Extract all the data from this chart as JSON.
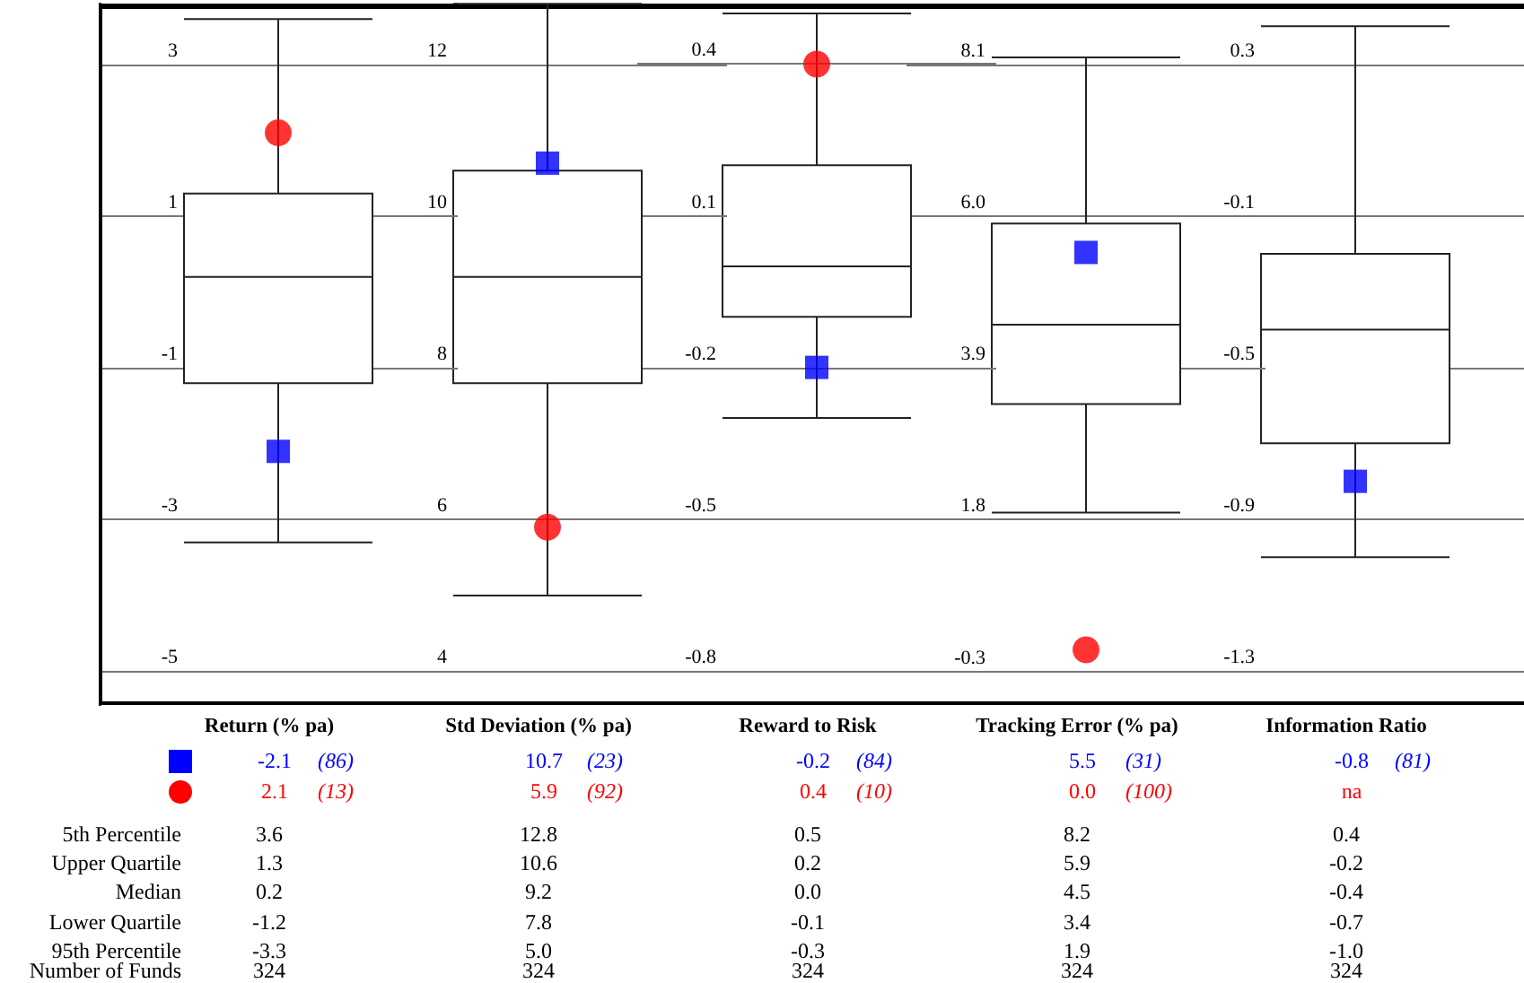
{
  "chart_data": [
    {
      "type": "box",
      "title": "Return (% pa)",
      "categories": [
        null
      ],
      "ylim": [
        -5.42,
        3.78
      ],
      "yticks": [
        3,
        1,
        -1,
        -3,
        -5
      ],
      "grid": "y",
      "boxes": [
        {
          "low": -3.3,
          "q1": -1.2,
          "median": 0.2,
          "q3": 1.3,
          "high": 3.6
        }
      ],
      "series": [
        {
          "type": "scatter",
          "color": "#0000ff",
          "marker": "square",
          "values": [
            -2.1
          ]
        },
        {
          "type": "scatter",
          "color": "#ff0000",
          "marker": "circle",
          "values": [
            2.1
          ]
        }
      ],
      "annotations": [
        "-2.1",
        "(86)",
        "2.1",
        "(13)",
        "3.6",
        "1.3",
        "0.2",
        "-1.2",
        "-3.3",
        "324",
        "5th Percentile",
        "Upper Quartile",
        "Median",
        "Lower Quartile",
        "95th Percentile",
        "Number of Funds"
      ]
    },
    {
      "type": "box",
      "title": "Std Deviation (% pa)",
      "categories": [
        null
      ],
      "ylim": [
        3.58,
        12.78
      ],
      "yticks": [
        12,
        10,
        8,
        6,
        4
      ],
      "grid": "y",
      "boxes": [
        {
          "low": 5.0,
          "q1": 7.8,
          "median": 9.2,
          "q3": 10.6,
          "high": 12.8
        }
      ],
      "series": [
        {
          "type": "scatter",
          "color": "#0000ff",
          "marker": "square",
          "values": [
            10.7
          ]
        },
        {
          "type": "scatter",
          "color": "#ff0000",
          "marker": "circle",
          "values": [
            5.9
          ]
        }
      ],
      "annotations": [
        "10.7",
        "(23)",
        "5.9",
        "(92)",
        "12.8",
        "10.6",
        "9.2",
        "7.8",
        "5.0",
        "324"
      ]
    },
    {
      "type": "box",
      "title": "Reward to Risk",
      "categories": [
        null
      ],
      "ylim": [
        -0.864,
        0.516
      ],
      "yticks": [
        0.4,
        0.1,
        -0.2,
        -0.5,
        -0.8
      ],
      "grid": "y",
      "boxes": [
        {
          "low": -0.3,
          "q1": -0.1,
          "median": 0.0,
          "q3": 0.2,
          "high": 0.5
        }
      ],
      "series": [
        {
          "type": "scatter",
          "color": "#0000ff",
          "marker": "square",
          "values": [
            -0.2
          ]
        },
        {
          "type": "scatter",
          "color": "#ff0000",
          "marker": "circle",
          "values": [
            0.4
          ]
        }
      ],
      "annotations": [
        "-0.2",
        "(84)",
        "0.4",
        "(10)",
        "0.5",
        "0.2",
        "0.0",
        "-0.1",
        "-0.3",
        "324"
      ]
    },
    {
      "type": "box",
      "title": "Tracking Error (% pa)",
      "categories": [
        null
      ],
      "ylim": [
        -0.74,
        8.92
      ],
      "yticks": [
        {
          "value": 8.1,
          "label": "8.1"
        },
        {
          "value": 6.0,
          "label": "6.0"
        },
        {
          "value": 3.9,
          "label": "3.9"
        },
        {
          "value": 1.8,
          "label": "1.8"
        },
        {
          "value": -0.3,
          "label": "-0.3"
        }
      ],
      "grid": "y",
      "boxes": [
        {
          "low": 1.9,
          "q1": 3.4,
          "median": 4.5,
          "q3": 5.9,
          "high": 8.2
        }
      ],
      "series": [
        {
          "type": "scatter",
          "color": "#0000ff",
          "marker": "square",
          "values": [
            5.5
          ]
        },
        {
          "type": "scatter",
          "color": "#ff0000",
          "marker": "circle",
          "values": [
            0.0
          ]
        }
      ],
      "annotations": [
        "5.5",
        "(31)",
        "0.0",
        "(100)",
        "8.2",
        "5.9",
        "4.5",
        "3.4",
        "1.9",
        "324"
      ]
    },
    {
      "type": "box",
      "title": "Information Ratio",
      "categories": [
        null
      ],
      "ylim": [
        -1.385,
        0.455
      ],
      "yticks": [
        0.3,
        -0.1,
        -0.5,
        -0.9,
        -1.3
      ],
      "grid": "y",
      "boxes": [
        {
          "low": -1.0,
          "q1": -0.7,
          "median": -0.4,
          "q3": -0.2,
          "high": 0.4
        }
      ],
      "series": [
        {
          "type": "scatter",
          "color": "#0000ff",
          "marker": "square",
          "values": [
            -0.8
          ]
        },
        {
          "type": "scatter",
          "color": "#ff0000",
          "marker": "circle",
          "values": [
            null
          ]
        }
      ],
      "annotations": [
        "-0.8",
        "(81)",
        "na",
        "0.4",
        "-0.2",
        "-0.4",
        "-0.7",
        "-1.0",
        "324"
      ]
    }
  ]
}
